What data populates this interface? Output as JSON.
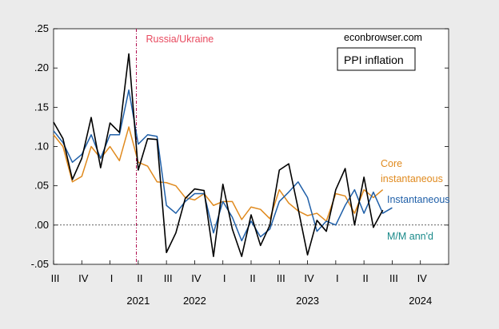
{
  "chart_data": {
    "type": "line",
    "title": "PPI inflation",
    "source": "econbrowser.com",
    "ylim": [
      -0.05,
      0.25
    ],
    "yticks": [
      -0.05,
      0.0,
      0.05,
      0.1,
      0.15,
      0.2,
      0.25
    ],
    "ytick_labels": [
      "-.05",
      ".00",
      ".05",
      ".10",
      ".15",
      ".20",
      ".25"
    ],
    "x_start": "2021-07",
    "x_end": "2024-12",
    "quarter_ticks": [
      "III",
      "IV",
      "I",
      "II",
      "III",
      "IV",
      "I",
      "II",
      "III",
      "IV",
      "I",
      "II",
      "III",
      "IV"
    ],
    "year_labels": [
      {
        "label": "2021",
        "month": 9
      },
      {
        "label": "2022",
        "month": 15
      },
      {
        "label": "2023",
        "month": 27
      },
      {
        "label": "2024",
        "month": 39
      }
    ],
    "event": {
      "label": "Russia/Ukraine",
      "month": 8.8
    },
    "series": [
      {
        "name": "M/M ann'd",
        "label": "M/M ann'd",
        "color": "#000000",
        "values": [
          0.131,
          0.11,
          0.058,
          0.085,
          0.137,
          0.073,
          0.13,
          0.118,
          0.218,
          0.07,
          0.11,
          0.109,
          -0.035,
          -0.01,
          0.034,
          0.046,
          0.044,
          -0.04,
          0.052,
          -0.005,
          -0.04,
          0.013,
          -0.026,
          0.0,
          0.07,
          0.078,
          0.021,
          -0.038,
          0.006,
          -0.008,
          0.045,
          0.072,
          0.0,
          0.061,
          -0.003,
          0.019
        ]
      },
      {
        "name": "Instantaneous",
        "label": "Instantaneous",
        "color": "#1f5fa8",
        "values": [
          0.12,
          0.105,
          0.08,
          0.09,
          0.115,
          0.085,
          0.115,
          0.115,
          0.172,
          0.103,
          0.115,
          0.113,
          0.025,
          0.015,
          0.03,
          0.04,
          0.04,
          -0.01,
          0.03,
          0.01,
          -0.02,
          0.005,
          -0.015,
          -0.005,
          0.03,
          0.042,
          0.055,
          0.035,
          -0.008,
          0.005,
          0.0,
          0.025,
          0.045,
          0.015,
          0.042,
          0.015,
          0.022
        ]
      },
      {
        "name": "Core instantaneous",
        "label_line1": "Core",
        "label_line2": "instantaneous",
        "color": "#e08a1e",
        "values": [
          0.115,
          0.1,
          0.055,
          0.062,
          0.1,
          0.085,
          0.1,
          0.082,
          0.125,
          0.08,
          0.075,
          0.055,
          0.054,
          0.05,
          0.035,
          0.032,
          0.04,
          0.025,
          0.03,
          0.03,
          0.007,
          0.023,
          0.02,
          0.008,
          0.045,
          0.028,
          0.018,
          0.012,
          0.015,
          0.005,
          0.04,
          0.037,
          0.015,
          0.045,
          0.035,
          0.045
        ]
      }
    ],
    "mm_label": "M/M ann'd",
    "mm_label_color": "#1a8a8a"
  }
}
